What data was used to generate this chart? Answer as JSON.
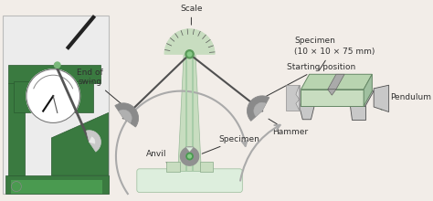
{
  "bg_color": "#f2ede8",
  "green_dark": "#3a7a40",
  "green_mid": "#7ab87a",
  "green_light": "#c8ddc0",
  "green_pale": "#ddeedd",
  "gray_dark": "#505050",
  "gray_mid": "#909090",
  "gray_light": "#c8c8c8",
  "gray_photo": "#d8d8d8",
  "text_color": "#303030",
  "white": "#ffffff",
  "labels": {
    "scale": "Scale",
    "starting_position": "Starting position",
    "hammer": "Hammer",
    "end_of_swing": "End of\nswing",
    "anvil": "Anvil",
    "specimen_center": "Specimen",
    "specimen_detail": "Specimen\n(10 × 10 × 75 mm)",
    "pendulum": "Pendulum"
  },
  "photo_bg": "#e0ddd8",
  "photo_border": "#aaaaaa",
  "machine_green": "#3a7a40"
}
